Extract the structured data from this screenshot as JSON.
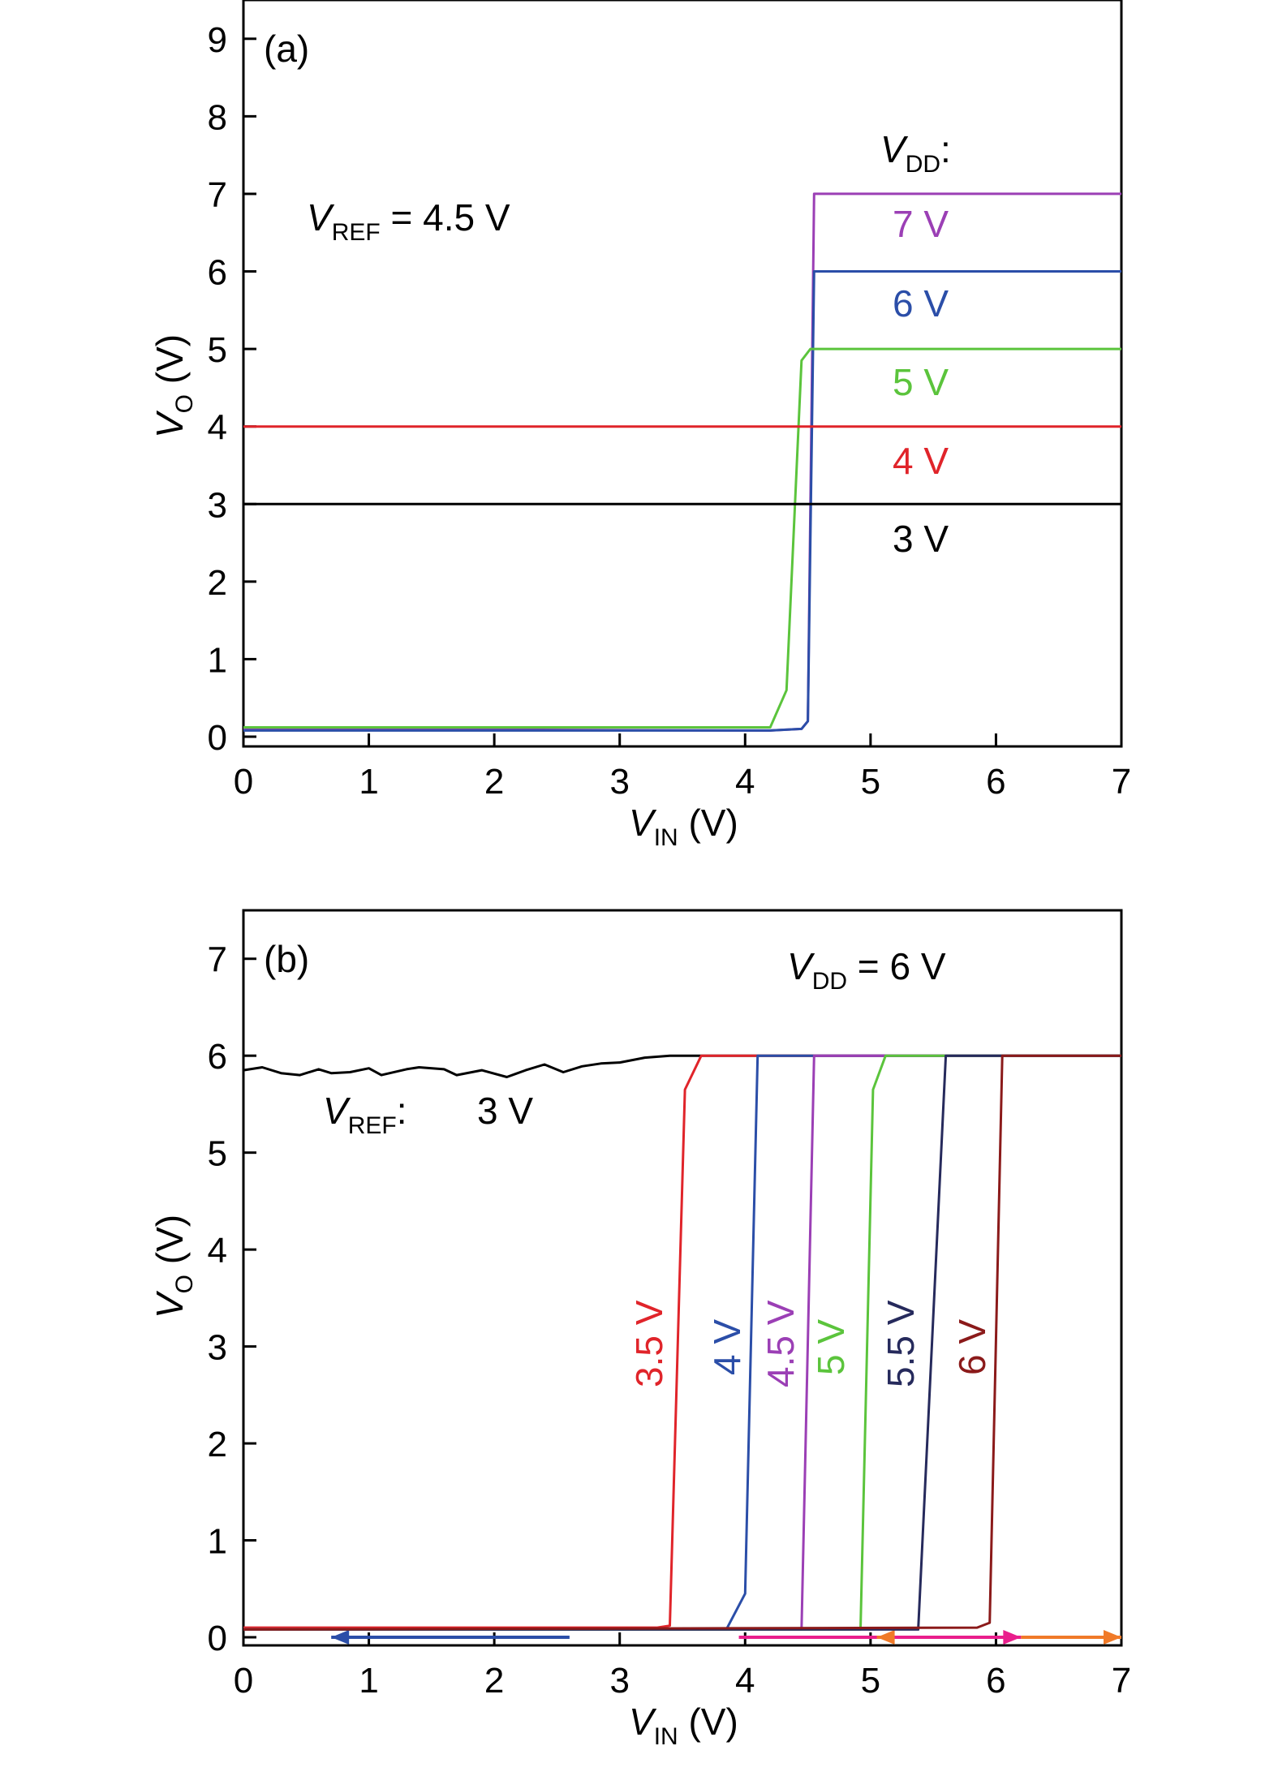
{
  "chart_data": [
    {
      "type": "line",
      "panel_label": "(a)",
      "xlim": [
        0,
        7
      ],
      "ylim": [
        0,
        9.5
      ],
      "xticks": [
        0,
        1,
        2,
        3,
        4,
        5,
        6,
        7
      ],
      "yticks": [
        0,
        1,
        2,
        3,
        4,
        5,
        6,
        7,
        8,
        9
      ],
      "xlabel": {
        "main": "V",
        "sub": "IN",
        "unit": " (V)"
      },
      "ylabel": {
        "main": "V",
        "sub": "O",
        "unit": " (V)"
      },
      "grid": false,
      "annotation": {
        "main": "V",
        "sub": "REF",
        "rest": " = 4.5 V"
      },
      "legend_title": {
        "main": "V",
        "sub": "DD",
        "rest": ":"
      },
      "series": [
        {
          "name": "7 V",
          "color": "#9b3fb5",
          "x": [
            0,
            4.2,
            4.45,
            4.5,
            4.55,
            7
          ],
          "y": [
            0.1,
            0.08,
            0.1,
            0.2,
            7,
            7
          ]
        },
        {
          "name": "6 V",
          "color": "#2b4ea8",
          "x": [
            0,
            4.2,
            4.45,
            4.5,
            4.55,
            7
          ],
          "y": [
            0.08,
            0.08,
            0.1,
            0.2,
            6,
            6
          ]
        },
        {
          "name": "5 V",
          "color": "#5bc43c",
          "x": [
            0,
            4.2,
            4.33,
            4.45,
            4.52,
            7
          ],
          "y": [
            0.12,
            0.12,
            0.6,
            4.85,
            5,
            5
          ]
        },
        {
          "name": "4 V",
          "color": "#e0242a",
          "x": [
            0,
            7
          ],
          "y": [
            4,
            4
          ]
        },
        {
          "name": "3 V",
          "color": "#000000",
          "x": [
            0,
            7
          ],
          "y": [
            3,
            3
          ]
        }
      ]
    },
    {
      "type": "line",
      "panel_label": "(b)",
      "xlim": [
        0,
        7
      ],
      "ylim": [
        0,
        7.5
      ],
      "xticks": [
        0,
        1,
        2,
        3,
        4,
        5,
        6,
        7
      ],
      "yticks": [
        0,
        1,
        2,
        3,
        4,
        5,
        6,
        7
      ],
      "xlabel": {
        "main": "V",
        "sub": "IN",
        "unit": " (V)"
      },
      "ylabel": {
        "main": "V",
        "sub": "O",
        "unit": " (V)"
      },
      "grid": false,
      "annotation": {
        "main": "V",
        "sub": "DD",
        "rest": " = 6 V"
      },
      "legend_title": {
        "main": "V",
        "sub": "REF",
        "rest": ":"
      },
      "series": [
        {
          "name": "3 V",
          "color": "#000000",
          "x": [
            0,
            0.15,
            0.3,
            0.45,
            0.6,
            0.7,
            0.85,
            1.0,
            1.1,
            1.3,
            1.4,
            1.6,
            1.7,
            1.9,
            2.1,
            2.25,
            2.4,
            2.55,
            2.7,
            2.85,
            3.0,
            3.2,
            3.4,
            4.0,
            7
          ],
          "y": [
            5.85,
            5.88,
            5.82,
            5.8,
            5.86,
            5.82,
            5.83,
            5.87,
            5.8,
            5.86,
            5.88,
            5.86,
            5.8,
            5.85,
            5.78,
            5.85,
            5.91,
            5.83,
            5.89,
            5.92,
            5.93,
            5.98,
            6,
            6,
            6
          ]
        },
        {
          "name": "3.5 V",
          "color": "#e0242a",
          "x": [
            0,
            3.3,
            3.4,
            3.52,
            3.65,
            7
          ],
          "y": [
            0.1,
            0.1,
            0.12,
            5.65,
            6,
            6
          ]
        },
        {
          "name": "4 V",
          "color": "#2b4ea8",
          "x": [
            0,
            3.85,
            4.0,
            4.1,
            7
          ],
          "y": [
            0.08,
            0.08,
            0.45,
            6,
            6
          ]
        },
        {
          "name": "4.5 V",
          "color": "#9b3fb5",
          "x": [
            0,
            4.45,
            4.55,
            7
          ],
          "y": [
            0.08,
            0.08,
            6,
            6
          ]
        },
        {
          "name": "5 V",
          "color": "#5bc43c",
          "x": [
            0,
            4.92,
            5.02,
            5.12,
            7
          ],
          "y": [
            0.08,
            0.08,
            5.65,
            6,
            6
          ]
        },
        {
          "name": "5.5 V",
          "color": "#262a5c",
          "x": [
            0,
            5.38,
            5.6,
            7
          ],
          "y": [
            0.08,
            0.08,
            6,
            6
          ]
        },
        {
          "name": "6 V",
          "color": "#8b1a1a",
          "x": [
            0,
            5.85,
            5.95,
            6.05,
            7
          ],
          "y": [
            0.08,
            0.1,
            0.15,
            6,
            6
          ]
        }
      ],
      "baseline_markers": [
        {
          "color": "#2b4ea8",
          "x0": 2.6,
          "x1": 0.7,
          "y": 0
        },
        {
          "color": "#e91e8c",
          "x0": 3.95,
          "x1": 6.2,
          "y": 0
        },
        {
          "color": "#f07a28",
          "x0": 6.2,
          "x1": 7.0,
          "y": 0
        },
        {
          "color": "#f07a28",
          "x0": 5.1,
          "x1": 5.05,
          "y": 0
        }
      ]
    }
  ]
}
